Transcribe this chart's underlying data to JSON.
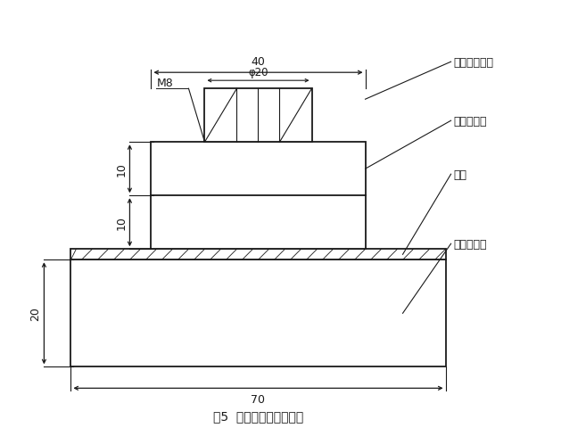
{
  "title": "图5  试件与上夹具粘结图",
  "bg_color": "#ffffff",
  "line_color": "#1a1a1a",
  "labels": {
    "la_jia": "拉伸用上夹具",
    "gao_jiao": "高强胶粘剂",
    "tu_liao": "涂料",
    "shui_ni": "水泥砂浆块",
    "M8": "M8",
    "phi20": "φ20",
    "dim40": "40",
    "dim70": "70",
    "dim10a": "10",
    "dim10b": "10",
    "dim20": "20"
  },
  "fig_width": 6.57,
  "fig_height": 4.81,
  "dpi": 100
}
